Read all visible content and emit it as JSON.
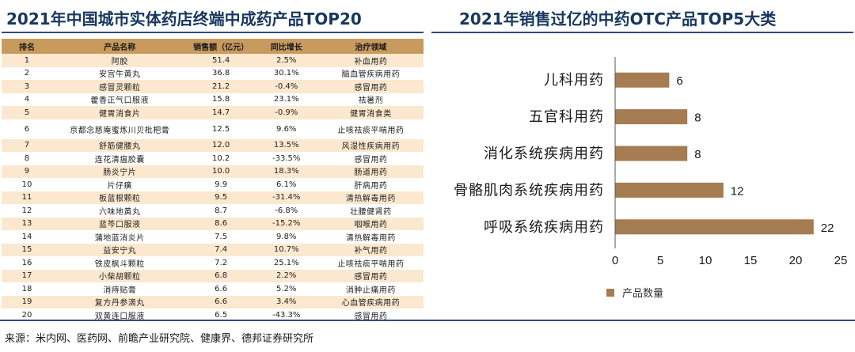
{
  "left_title": "2021年中国城市实体药店终端中成药产品TOP20",
  "right_title": "2021年销售过亿的中药OTC产品TOP5大类",
  "source_note": "来源：米内网、医药网、前瞻产业研究院、健康界、德邦证券研究所",
  "chart_data": [
    {
      "type": "table",
      "title": "2021年中国城市实体药店终端中成药产品TOP20",
      "columns": [
        "排名",
        "产品名称",
        "销售额（亿元）",
        "同比增长",
        "治疗领域"
      ],
      "rows": [
        [
          "1",
          "阿胶",
          "51.4",
          "2.5%",
          "补血用药"
        ],
        [
          "2",
          "安宫牛黄丸",
          "36.8",
          "30.1%",
          "脑血管疾病用药"
        ],
        [
          "3",
          "感冒灵颗粒",
          "21.2",
          "-0.4%",
          "感冒用药"
        ],
        [
          "4",
          "藿香正气口服液",
          "15.8",
          "23.1%",
          "祛暑剂"
        ],
        [
          "5",
          "健胃消食片",
          "14.7",
          "-0.9%",
          "健胃消食类"
        ],
        [
          "6",
          "京都念慈庵蜜炼川贝枇杷膏",
          "12.5",
          "9.6%",
          "止咳祛痰平喘用药"
        ],
        [
          "7",
          "舒筋健腰丸",
          "12.0",
          "13.5%",
          "风湿性疾病用药"
        ],
        [
          "8",
          "连花清瘟胶囊",
          "10.2",
          "-33.5%",
          "感冒用药"
        ],
        [
          "9",
          "肠炎宁片",
          "10.0",
          "18.3%",
          "肠道用药"
        ],
        [
          "10",
          "片仔癀",
          "9.9",
          "6.1%",
          "肝病用药"
        ],
        [
          "11",
          "板蓝根颗粒",
          "9.5",
          "-31.4%",
          "清热解毒用药"
        ],
        [
          "12",
          "六味地黄丸",
          "8.7",
          "-6.8%",
          "壮腰健肾药"
        ],
        [
          "13",
          "蓝芩口服液",
          "8.6",
          "-15.2%",
          "咽喉用药"
        ],
        [
          "14",
          "蒲地蓝消炎片",
          "7.5",
          "9.8%",
          "清热解毒用药"
        ],
        [
          "15",
          "益安宁丸",
          "7.4",
          "10.7%",
          "补气用药"
        ],
        [
          "16",
          "铁皮枫斗颗粒",
          "7.2",
          "25.1%",
          "止咳祛痰平喘用药"
        ],
        [
          "17",
          "小柴胡颗粒",
          "6.8",
          "2.2%",
          "感冒用药"
        ],
        [
          "18",
          "消痔贴膏",
          "6.6",
          "5.2%",
          "消肿止痛用药"
        ],
        [
          "19",
          "复方丹参滴丸",
          "6.6",
          "3.4%",
          "心血管疾病用药"
        ],
        [
          "20",
          "双黄连口服液",
          "6.5",
          "-43.3%",
          "感冒用药"
        ]
      ]
    },
    {
      "type": "bar",
      "orientation": "horizontal",
      "title": "2021年销售过亿的中药OTC产品TOP5大类",
      "categories": [
        "儿科用药",
        "五官科用药",
        "消化系统疾病用药",
        "骨骼肌肉系统疾病用药",
        "呼吸系统疾病用药"
      ],
      "series": [
        {
          "name": "产品数量",
          "values": [
            6,
            8,
            8,
            12,
            22
          ]
        }
      ],
      "xlim": [
        0,
        25
      ],
      "xticks": [
        0,
        5,
        10,
        15,
        20,
        25
      ],
      "bar_color": "#a67c52",
      "legend_position": "bottom-left",
      "grid": false
    }
  ]
}
